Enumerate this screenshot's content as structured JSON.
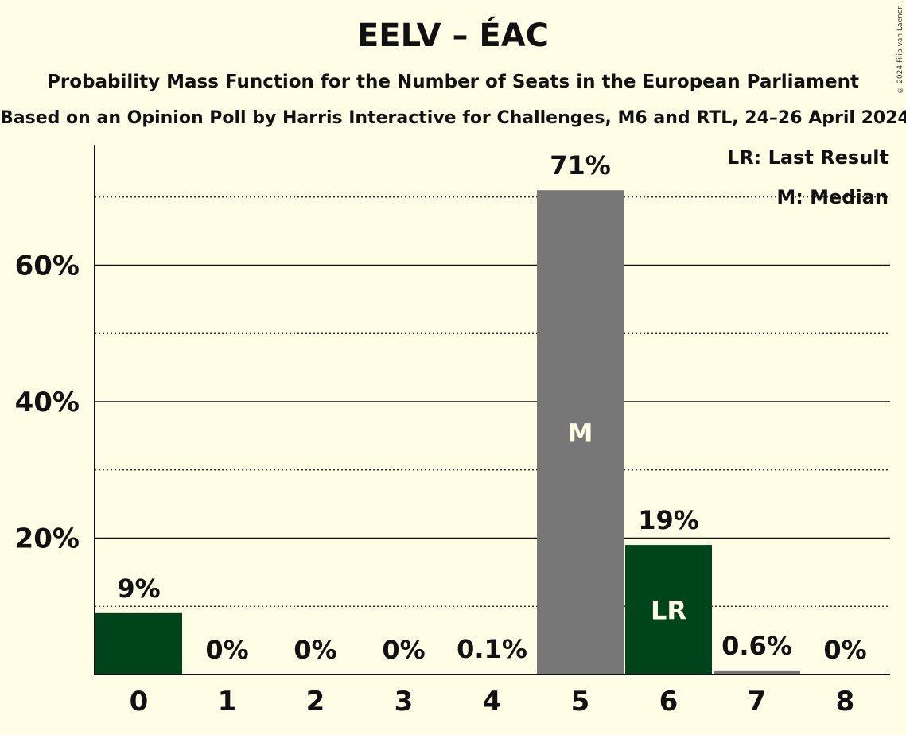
{
  "title": "EELV – ÉAC",
  "subtitle": "Probability Mass Function for the Number of Seats in the European Parliament",
  "subtitle2": "Based on an Opinion Poll by Harris Interactive for Challenges, M6 and RTL, 24–26 April 2024",
  "copyright": "© 2024 Filip van Laenen",
  "legend": {
    "last_result": "LR: Last Result",
    "median": "M: Median"
  },
  "colors": {
    "background": "#fffde6",
    "party_dark": "#00441b",
    "median_grey": "#777777",
    "light_bar": "#777777"
  },
  "chart_data": {
    "type": "bar",
    "categories": [
      "0",
      "1",
      "2",
      "3",
      "4",
      "5",
      "6",
      "7",
      "8"
    ],
    "values": [
      9,
      0,
      0,
      0,
      0.1,
      71,
      19,
      0.6,
      0
    ],
    "labels": [
      "9%",
      "0%",
      "0%",
      "0%",
      "0.1%",
      "71%",
      "19%",
      "0.6%",
      "0%"
    ],
    "bar_colors": [
      "#00441b",
      "#00441b",
      "#00441b",
      "#00441b",
      "#777777",
      "#777777",
      "#00441b",
      "#777777",
      "#777777"
    ],
    "inner_labels": {
      "5": "M",
      "6": "LR"
    },
    "ylim": [
      0,
      77.5
    ],
    "y_ticks": [
      20,
      40,
      60
    ],
    "y_tick_labels": [
      "20%",
      "40%",
      "60%"
    ],
    "minor_gridlines": [
      10,
      30,
      50,
      70
    ],
    "median": 5,
    "last_result": 6
  }
}
